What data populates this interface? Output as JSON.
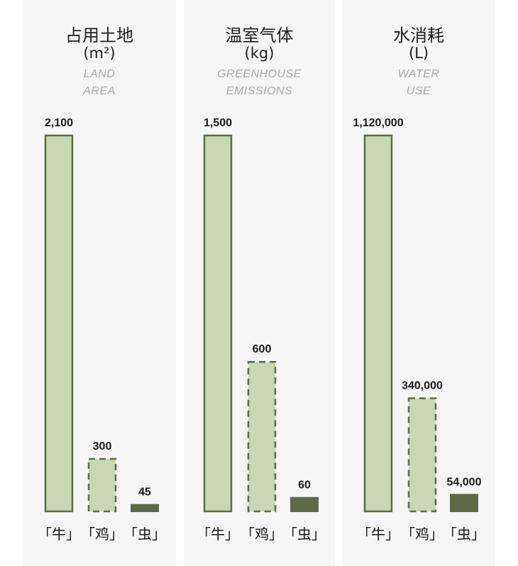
{
  "chart_data": [
    {
      "type": "bar",
      "title": "占用土地",
      "unit": "(m²)",
      "subtitle_lines": [
        "LAND",
        "AREA"
      ],
      "categories": [
        "「牛」",
        "「鸡」",
        "「虫」"
      ],
      "values": [
        2100,
        300,
        45
      ],
      "value_labels": [
        "2,100",
        "300",
        "45"
      ]
    },
    {
      "type": "bar",
      "title": "温室气体",
      "unit": "(kg)",
      "subtitle_lines": [
        "GREENHOUSE",
        "EMISSIONS"
      ],
      "categories": [
        "「牛」",
        "「鸡」",
        "「虫」"
      ],
      "values": [
        1500,
        600,
        60
      ],
      "value_labels": [
        "1,500",
        "600",
        "60"
      ]
    },
    {
      "type": "bar",
      "title": "水消耗",
      "unit": "(L)",
      "subtitle_lines": [
        "WATER",
        "USE"
      ],
      "categories": [
        "「牛」",
        "「鸡」",
        "「虫」"
      ],
      "values": [
        1120000,
        340000,
        54000
      ],
      "value_labels": [
        "1,120,000",
        "340,000",
        "54,000"
      ]
    }
  ],
  "colors": {
    "bar_fill": "#c9d7b4",
    "bar_stroke": "#5c6b45",
    "bar_dark": "#5e6a45",
    "panel_bg": "#f6f6f6",
    "label": "#1a1a1a",
    "subtitle": "#a9a9a9"
  }
}
